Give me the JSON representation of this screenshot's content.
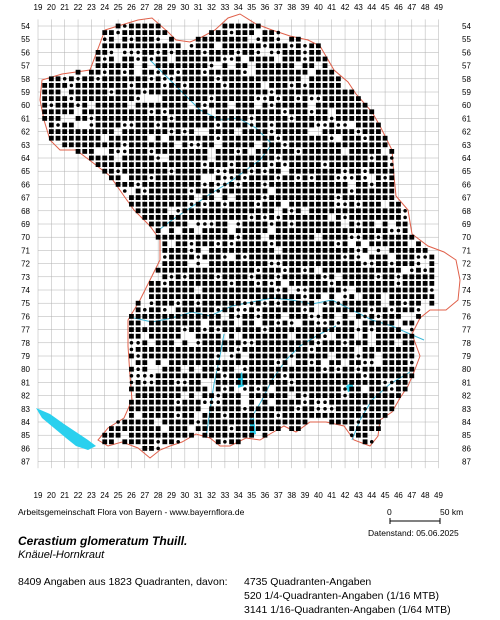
{
  "grid": {
    "col_labels": [
      "19",
      "20",
      "21",
      "22",
      "23",
      "24",
      "25",
      "26",
      "27",
      "28",
      "29",
      "30",
      "31",
      "32",
      "33",
      "34",
      "35",
      "36",
      "37",
      "38",
      "39",
      "40",
      "41",
      "42",
      "43",
      "44",
      "45",
      "46",
      "47",
      "48",
      "49"
    ],
    "row_labels": [
      "54",
      "55",
      "56",
      "57",
      "58",
      "59",
      "60",
      "61",
      "62",
      "63",
      "64",
      "65",
      "66",
      "67",
      "68",
      "69",
      "70",
      "71",
      "72",
      "73",
      "74",
      "75",
      "76",
      "77",
      "78",
      "79",
      "80",
      "81",
      "82",
      "83",
      "84",
      "85",
      "86",
      "87"
    ]
  },
  "colors": {
    "border": "#e0604a",
    "water": "#2ad0ee",
    "river": "#3bb8d8",
    "grid": "#b0b0b0",
    "dot": "#000000"
  },
  "legend": {
    "credit": "Arbeitsgemeinschaft Flora von Bayern - www.bayernflora.de",
    "scale_zero": "0",
    "scale_km": "50 km",
    "date": "Datenstand: 05.06.2025"
  },
  "species": {
    "scientific": "Cerastium glomeratum Thuill.",
    "common": "Knäuel-Hornkraut"
  },
  "stats": {
    "summary": "8409 Angaben aus 1823 Quadranten, davon:",
    "line1": "4735 Quadranten-Angaben",
    "line2": "520 1/4-Quadranten-Angaben (1/16 MTB)",
    "line3": "3141 1/16-Quadranten-Angaben (1/64 MTB)"
  }
}
